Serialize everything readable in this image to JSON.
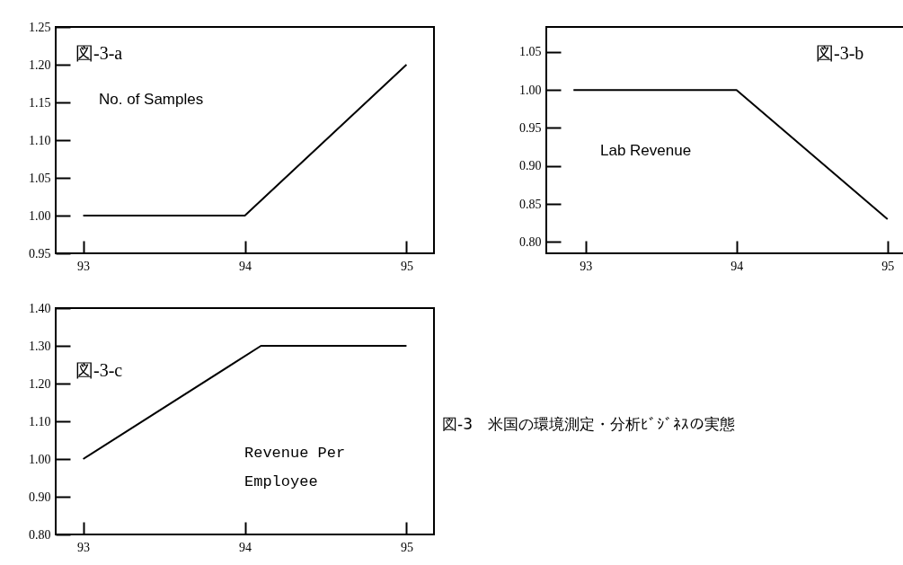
{
  "chart_data": [
    {
      "type": "line",
      "title": "図-3-a",
      "annotations": [
        "No. of Samples"
      ],
      "x": [
        93,
        94,
        95
      ],
      "series": [
        {
          "color": "#000000",
          "values": [
            1.0,
            1.0,
            1.2
          ]
        }
      ],
      "xlim": [
        92.83,
        95.17
      ],
      "xticks": [
        93,
        94,
        95
      ],
      "ylim": [
        0.95,
        1.25
      ],
      "yticks": [
        0.95,
        {
          "value": 1.0,
          "label": "1.00"
        },
        1.05,
        {
          "value": 1.1,
          "label": "1.10"
        },
        1.15,
        {
          "value": 1.2,
          "label": "1.20"
        },
        1.25
      ]
    },
    {
      "type": "line",
      "title": "図-3-b",
      "annotations": [
        "Lab Revenue"
      ],
      "x": [
        92.92,
        94,
        95
      ],
      "series": [
        {
          "color": "#000000",
          "values": [
            1.0,
            1.0,
            0.83
          ]
        }
      ],
      "xlim": [
        92.74,
        95.15
      ],
      "xticks": [
        93,
        94,
        95
      ],
      "ylim": [
        0.785,
        1.083
      ],
      "yticks": [
        {
          "value": 0.8,
          "label": "0.80"
        },
        0.85,
        {
          "value": 0.9,
          "label": "0.90"
        },
        0.95,
        {
          "value": 1.0,
          "label": "1.00"
        },
        1.05
      ]
    },
    {
      "type": "line",
      "title": "図-3-c",
      "annotations": [
        "Revenue Per\nEmployee"
      ],
      "x": [
        93,
        94.1,
        95
      ],
      "series": [
        {
          "color": "#000000",
          "values": [
            1.0,
            1.3,
            1.3
          ]
        }
      ],
      "xlim": [
        92.83,
        95.17
      ],
      "xticks": [
        93,
        94,
        95
      ],
      "ylim": [
        0.8,
        1.4
      ],
      "yticks": [
        {
          "value": 0.8,
          "label": "0.80"
        },
        {
          "value": 0.9,
          "label": "0.90"
        },
        {
          "value": 1.0,
          "label": "1.00"
        },
        {
          "value": 1.1,
          "label": "1.10"
        },
        {
          "value": 1.2,
          "label": "1.20"
        },
        {
          "value": 1.3,
          "label": "1.30"
        },
        {
          "value": 1.4,
          "label": "1.40"
        }
      ]
    },
    {
      "type": "other",
      "title": "図-3　米国の環境測定・分析ﾋﾞｼﾞﾈｽの実態"
    }
  ]
}
